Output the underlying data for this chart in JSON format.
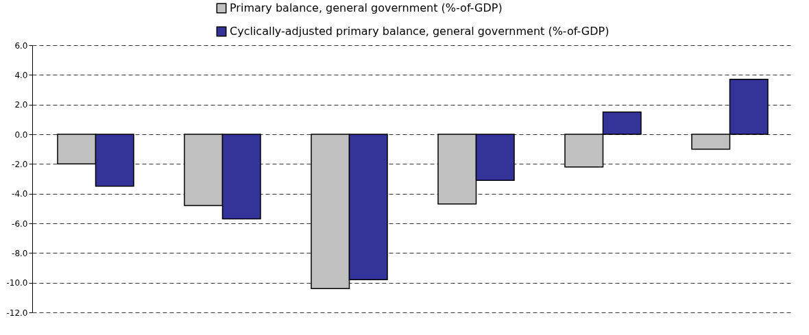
{
  "chart_data": {
    "type": "bar",
    "categories": [
      null,
      null,
      null,
      null,
      null,
      null
    ],
    "series": [
      {
        "name": "Primary balance, general government (%-of-GDP)",
        "color": "#c0c0c0",
        "values": [
          -2.0,
          -4.8,
          -10.4,
          -4.7,
          -2.2,
          -1.0
        ]
      },
      {
        "name": "Cyclically-adjusted primary balance, general government (%-of-GDP)",
        "color": "#333399",
        "values": [
          -3.5,
          -5.7,
          -9.8,
          -3.1,
          1.5,
          3.7
        ]
      }
    ],
    "ylim": [
      -12,
      6
    ],
    "yticks": [
      {
        "value": -12,
        "label": "-12.0"
      },
      {
        "value": -10,
        "label": "-10.0"
      },
      {
        "value": -8,
        "label": "-8.0"
      },
      {
        "value": -6,
        "label": "-6.0"
      },
      {
        "value": -4,
        "label": "-4.0"
      },
      {
        "value": -2,
        "label": "-2.0"
      },
      {
        "value": 0,
        "label": "0.0"
      },
      {
        "value": 2,
        "label": "2.0"
      },
      {
        "value": 4,
        "label": "4.0"
      },
      {
        "value": 6,
        "label": "6.0"
      }
    ],
    "grid": "y",
    "legend": "top",
    "tick_labels": "y"
  }
}
